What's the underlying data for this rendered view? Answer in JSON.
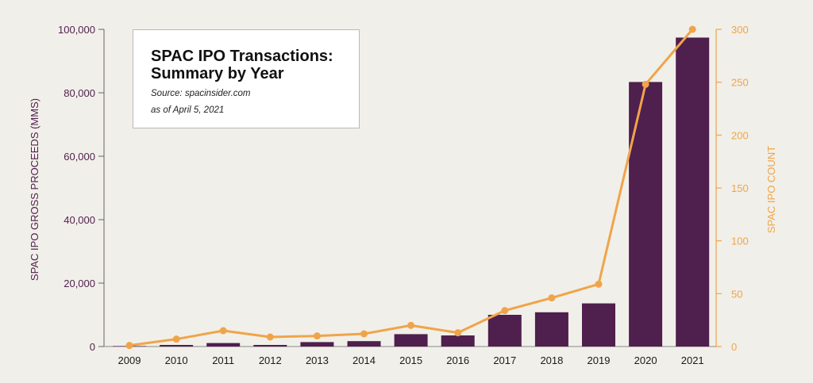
{
  "chart_data": {
    "type": "bar",
    "title": [
      "SPAC IPO Transactions:",
      "Summary by Year"
    ],
    "source": "Source: spacinsider.com",
    "as_of": "as of April 5, 2021",
    "categories": [
      "2009",
      "2010",
      "2011",
      "2012",
      "2013",
      "2014",
      "2015",
      "2016",
      "2017",
      "2018",
      "2019",
      "2020",
      "2021"
    ],
    "series": [
      {
        "name": "SPAC IPO GROSS PROCEEDS (MMS)",
        "kind": "bar",
        "axis": "left",
        "values": [
          150,
          500,
          1100,
          500,
          1400,
          1700,
          3900,
          3500,
          10000,
          10800,
          13600,
          83400,
          97400
        ]
      },
      {
        "name": "SPAC IPO COUNT",
        "kind": "line",
        "axis": "right",
        "values": [
          1,
          7,
          15,
          9,
          10,
          12,
          20,
          13,
          34,
          46,
          59,
          248,
          300
        ]
      }
    ],
    "ylabel_left": "SPAC IPO GROSS PROCEEDS (MMS)",
    "ylabel_right": "SPAC IPO COUNT",
    "ylim_left": [
      0,
      100000
    ],
    "ylim_right": [
      0,
      300
    ],
    "yticks_left": [
      "0",
      "20,000",
      "40,000",
      "60,000",
      "80,000",
      "100,000"
    ],
    "yticks_right": [
      "0",
      "50",
      "100",
      "150",
      "200",
      "250",
      "300"
    ],
    "grid": false,
    "colors": {
      "bar": "#4f1f4d",
      "line": "#f0a44a",
      "left_axis_text": "#4f1f4d",
      "right_axis_text": "#f0a44a"
    }
  }
}
